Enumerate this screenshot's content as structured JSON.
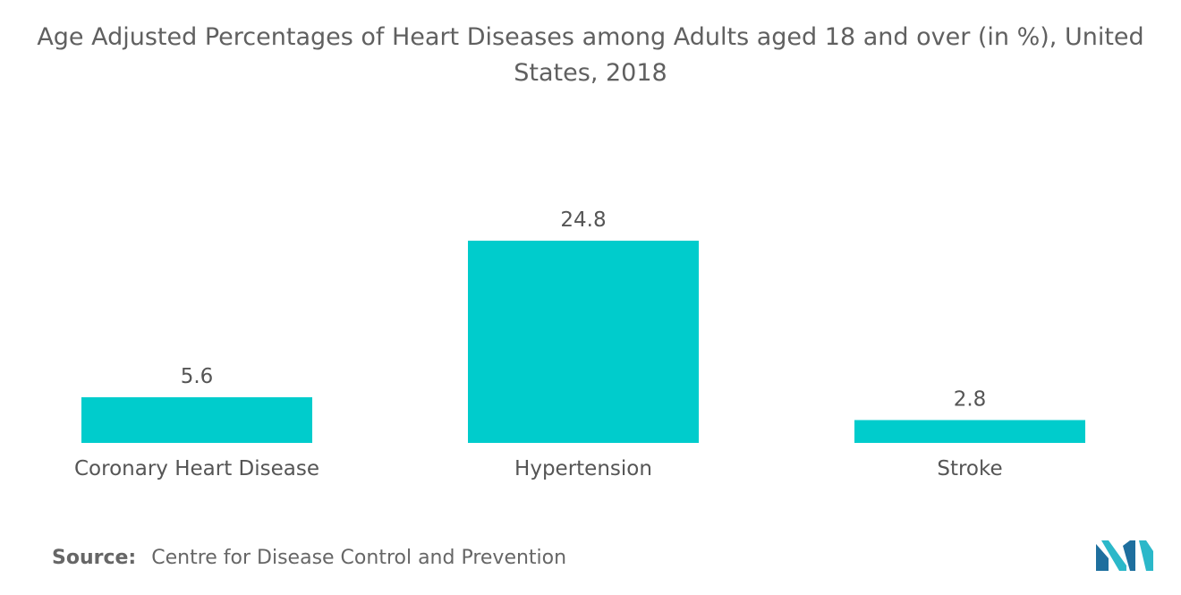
{
  "title_lines": [
    "Age Adjusted Percentages of Heart Diseases among Adults aged 18 and over (in %), United",
    "States, 2018"
  ],
  "source": {
    "label": "Source:",
    "text": "Centre for Disease Control and Prevention"
  },
  "logo": {
    "icon": "mordor-intelligence-logo",
    "colors": [
      "#1e6f9e",
      "#2bb8c9"
    ]
  },
  "colors": {
    "bar": "#00cccc",
    "text": "#555555"
  },
  "chart_data": {
    "type": "bar",
    "title": "Age Adjusted Percentages of Heart Diseases among Adults aged 18 and over (in %), United States, 2018",
    "categories": [
      "Coronary Heart Disease",
      "Hypertension",
      "Stroke"
    ],
    "values": [
      5.6,
      24.8,
      2.8
    ],
    "value_labels": [
      "5.6",
      "24.8",
      "2.8"
    ],
    "xlabel": "",
    "ylabel": "",
    "ylim": [
      0,
      24.8
    ],
    "grid": false,
    "legend": "none"
  }
}
